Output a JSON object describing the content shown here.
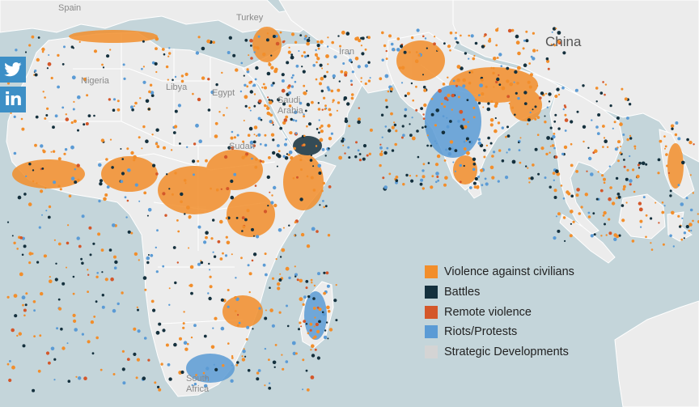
{
  "map": {
    "country_labels": [
      {
        "name": "Spain",
        "key": "spain"
      },
      {
        "name": "Turkey",
        "key": "turkey"
      },
      {
        "name": "Iran",
        "key": "iran"
      },
      {
        "name": "China",
        "key": "china"
      },
      {
        "name": "Nigeria",
        "key": "nigeria"
      },
      {
        "name": "Libya",
        "key": "libya"
      },
      {
        "name": "Egypt",
        "key": "egypt"
      },
      {
        "name": "Saudi Arabia",
        "key": "saudi-arabia"
      },
      {
        "name": "Sudan",
        "key": "sudan"
      },
      {
        "name": "South Africa",
        "key": "south-africa"
      }
    ]
  },
  "share": {
    "twitter_icon": "twitter-bird-icon",
    "linkedin_text": "in"
  },
  "legend": {
    "items": [
      {
        "label": "Violence against civilians",
        "color": "#f28e2b"
      },
      {
        "label": "Battles",
        "color": "#14303d"
      },
      {
        "label": "Remote violence",
        "color": "#d4572a"
      },
      {
        "label": "Riots/Protests",
        "color": "#5b9bd5"
      },
      {
        "label": "Strategic Developments",
        "color": "#d4d4d4"
      }
    ]
  },
  "colors": {
    "ocean": "#c4d5da",
    "land": "#ededed",
    "border": "#ffffff"
  }
}
